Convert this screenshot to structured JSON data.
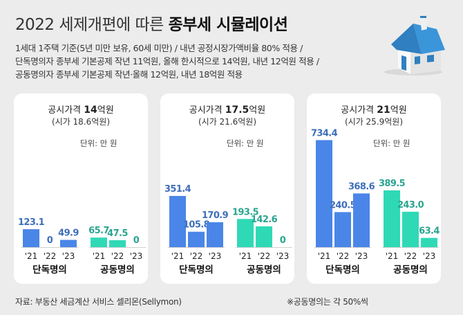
{
  "title": {
    "light": "2022 세제개편에 따른",
    "bold": "종부세 시뮬레이션"
  },
  "description": [
    "1세대 1주택 기준(5년 미만 보유, 60세 미만) / 내년 공정시장가액비율 80% 적용 /",
    "단독명의자 종부세 기본공제 작년 11억원, 올해 한시적으로 14억원, 내년 12억원 적용 /",
    "공동명의자 종부세 기본공제 작년·올해 12억원, 내년 18억원 적용"
  ],
  "unit_label": "단위: 만 원",
  "footer": {
    "source": "자료: 부동산 세금계산 서비스 셀리몬(Sellymon)",
    "note": "※공동명의는 각 50%씩"
  },
  "colors": {
    "single": "#4a86e8",
    "joint": "#2fd9b6",
    "value_single": "#3e6fb8",
    "value_joint": "#2aa58f"
  },
  "chart_data": [
    {
      "type": "bar",
      "title": "공시가격 14억원",
      "title_parts": {
        "prefix": "공시가격 ",
        "amount": "14",
        "suffix": "억원"
      },
      "subtitle": "(시가 18.6억원)",
      "unit": "단위: 만 원",
      "categories": [
        "'21",
        "'22",
        "'23"
      ],
      "series": [
        {
          "name": "단독명의",
          "values": [
            123.1,
            0,
            49.9
          ],
          "labels": [
            "123.1",
            "0",
            "49.9"
          ]
        },
        {
          "name": "공동명의",
          "values": [
            65.7,
            47.5,
            0
          ],
          "labels": [
            "65.7",
            "47.5",
            "0"
          ]
        }
      ]
    },
    {
      "type": "bar",
      "title": "공시가격 17.5억원",
      "title_parts": {
        "prefix": "공시가격 ",
        "amount": "17.5",
        "suffix": "억원"
      },
      "subtitle": "(시가 21.6억원)",
      "unit": "단위: 만 원",
      "categories": [
        "'21",
        "'22",
        "'23"
      ],
      "series": [
        {
          "name": "단독명의",
          "values": [
            351.4,
            105.8,
            170.9
          ],
          "labels": [
            "351.4",
            "105.8",
            "170.9"
          ]
        },
        {
          "name": "공동명의",
          "values": [
            193.5,
            142.6,
            0
          ],
          "labels": [
            "193.5",
            "142.6",
            "0"
          ]
        }
      ]
    },
    {
      "type": "bar",
      "title": "공시가격 21억원",
      "title_parts": {
        "prefix": "공시가격 ",
        "amount": "21",
        "suffix": "억원"
      },
      "subtitle": "(시가 25.9억원)",
      "unit": "단위: 만 원",
      "categories": [
        "'21",
        "'22",
        "'23"
      ],
      "series": [
        {
          "name": "단독명의",
          "values": [
            734.4,
            240.5,
            368.6
          ],
          "labels": [
            "734.4",
            "240.5",
            "368.6"
          ]
        },
        {
          "name": "공동명의",
          "values": [
            389.5,
            243.0,
            63.4
          ],
          "labels": [
            "389.5",
            "243.0",
            "63.4"
          ]
        }
      ]
    }
  ]
}
